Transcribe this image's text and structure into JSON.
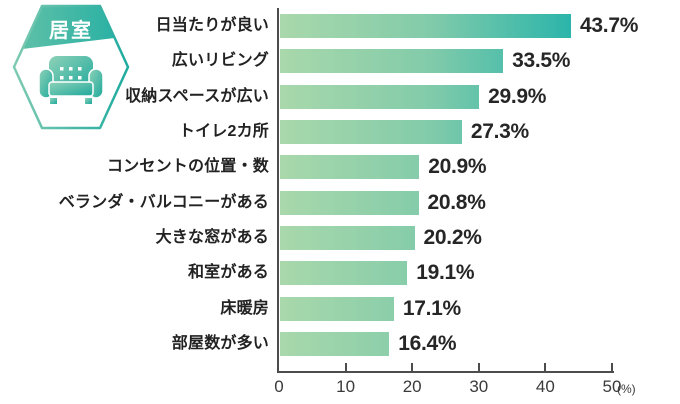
{
  "badge": {
    "label": "居室",
    "icon": "sofa-icon"
  },
  "chart_data": {
    "type": "bar",
    "orientation": "horizontal",
    "categories": [
      "日当たりが良い",
      "広いリビング",
      "収納スペースが広い",
      "トイレ2カ所",
      "コンセントの位置・数",
      "ベランダ・バルコニーがある",
      "大きな窓がある",
      "和室がある",
      "床暖房",
      "部屋数が多い"
    ],
    "values": [
      43.7,
      33.5,
      29.9,
      27.3,
      20.9,
      20.8,
      20.2,
      19.1,
      17.1,
      16.4
    ],
    "value_labels": [
      "43.7%",
      "33.5%",
      "29.9%",
      "27.3%",
      "20.9%",
      "20.8%",
      "20.2%",
      "19.1%",
      "17.1%",
      "16.4%"
    ],
    "xlim": [
      0,
      50
    ],
    "x_ticks": [
      0,
      10,
      20,
      30,
      40,
      50
    ],
    "x_unit": "(%)",
    "grid": false,
    "legend": "none",
    "colors": {
      "bar_gradient": [
        "#a9d8ab",
        "#82cbaa",
        "#12aeaa"
      ],
      "badge_strip_gradient": [
        "#5ec0a7",
        "#2bb1a4"
      ],
      "badge_border_gradient": [
        "#7ecab2",
        "#1fab9f"
      ],
      "sofa_gradient": [
        "#8ed2b8",
        "#1ea89b"
      ],
      "badge_text": "#ffffff",
      "category_text": "#222222",
      "value_text": "#262626",
      "axis": "#4c4c4c"
    }
  }
}
